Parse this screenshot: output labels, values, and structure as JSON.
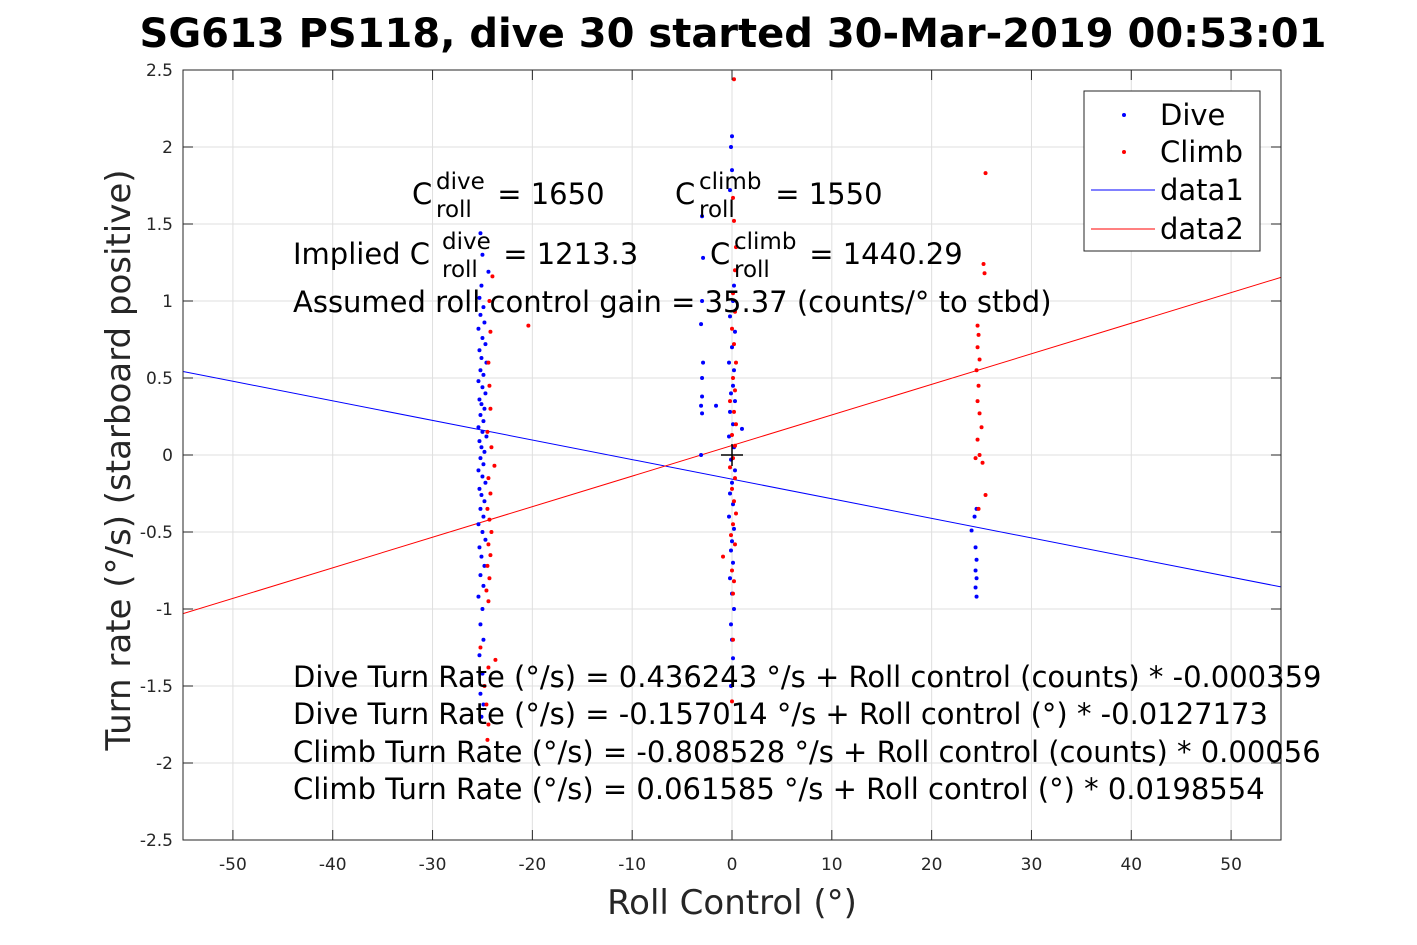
{
  "chart_data": {
    "type": "scatter",
    "title": "SG613 PS118, dive 30 started 30-Mar-2019 00:53:01",
    "xlabel": "Roll Control (°)",
    "ylabel": "Turn rate (°/s) (starboard positive)",
    "xlim": [
      -55,
      55
    ],
    "ylim": [
      -2.5,
      2.5
    ],
    "xticks": [
      -50,
      -40,
      -30,
      -20,
      -10,
      0,
      10,
      20,
      30,
      40,
      50
    ],
    "yticks": [
      -2.5,
      -2,
      -1.5,
      -1,
      -0.5,
      0,
      0.5,
      1,
      1.5,
      2,
      2.5
    ],
    "xtick_labels": [
      "-50",
      "-40",
      "-30",
      "-20",
      "-10",
      "0",
      "10",
      "20",
      "30",
      "40",
      "50"
    ],
    "ytick_labels": [
      "-2.5",
      "-2",
      "-1.5",
      "-1",
      "-0.5",
      "0",
      "0.5",
      "1",
      "1.5",
      "2",
      "2.5"
    ],
    "grid": true,
    "legend_position": "top-right",
    "colors": {
      "dive": "#0000ff",
      "climb": "#ff0000",
      "marker": "#000000"
    },
    "series": [
      {
        "name": "Dive",
        "style": "points",
        "points": [
          [
            -25.2,
            1.44
          ],
          [
            -25.0,
            1.3
          ],
          [
            -24.4,
            1.19
          ],
          [
            -25.1,
            1.1
          ],
          [
            -25.3,
            1.02
          ],
          [
            -24.9,
            0.96
          ],
          [
            -25.2,
            0.91
          ],
          [
            -24.8,
            0.86
          ],
          [
            -25.4,
            0.82
          ],
          [
            -25.0,
            0.76
          ],
          [
            -24.7,
            0.72
          ],
          [
            -25.3,
            0.68
          ],
          [
            -25.1,
            0.63
          ],
          [
            -24.6,
            0.6
          ],
          [
            -25.2,
            0.55
          ],
          [
            -24.9,
            0.52
          ],
          [
            -25.4,
            0.48
          ],
          [
            -25.0,
            0.44
          ],
          [
            -24.7,
            0.4
          ],
          [
            -25.3,
            0.36
          ],
          [
            -25.1,
            0.33
          ],
          [
            -24.8,
            0.3
          ],
          [
            -25.2,
            0.26
          ],
          [
            -24.9,
            0.22
          ],
          [
            -25.4,
            0.18
          ],
          [
            -25.0,
            0.15
          ],
          [
            -24.6,
            0.12
          ],
          [
            -25.3,
            0.09
          ],
          [
            -25.1,
            0.05
          ],
          [
            -24.8,
            0.02
          ],
          [
            -25.2,
            -0.02
          ],
          [
            -24.9,
            -0.06
          ],
          [
            -25.4,
            -0.1
          ],
          [
            -25.0,
            -0.14
          ],
          [
            -24.7,
            -0.18
          ],
          [
            -25.3,
            -0.22
          ],
          [
            -25.1,
            -0.26
          ],
          [
            -24.8,
            -0.3
          ],
          [
            -25.2,
            -0.35
          ],
          [
            -24.9,
            -0.4
          ],
          [
            -25.4,
            -0.45
          ],
          [
            -25.0,
            -0.5
          ],
          [
            -24.7,
            -0.55
          ],
          [
            -25.3,
            -0.6
          ],
          [
            -25.1,
            -0.66
          ],
          [
            -24.8,
            -0.72
          ],
          [
            -25.2,
            -0.78
          ],
          [
            -24.9,
            -0.85
          ],
          [
            -25.4,
            -0.92
          ],
          [
            -25.0,
            -1.0
          ],
          [
            -25.2,
            -1.1
          ],
          [
            -24.9,
            -1.2
          ],
          [
            -25.3,
            -1.3
          ],
          [
            -25.0,
            -1.42
          ],
          [
            -25.2,
            -1.55
          ],
          [
            -24.9,
            -1.62
          ],
          [
            -25.1,
            -1.7
          ],
          [
            0.0,
            2.07
          ],
          [
            -0.1,
            2.0
          ],
          [
            0.0,
            1.85
          ],
          [
            -0.2,
            1.72
          ],
          [
            -3.0,
            1.55
          ],
          [
            -2.9,
            1.28
          ],
          [
            -3.0,
            1.0
          ],
          [
            -3.1,
            0.85
          ],
          [
            -2.9,
            0.6
          ],
          [
            -3.0,
            0.5
          ],
          [
            -3.0,
            0.38
          ],
          [
            -3.1,
            0.32
          ],
          [
            -1.6,
            0.32
          ],
          [
            -3.0,
            0.27
          ],
          [
            -3.1,
            0.0
          ],
          [
            0.2,
            1.1
          ],
          [
            0.1,
            1.0
          ],
          [
            -0.2,
            0.9
          ],
          [
            0.3,
            0.8
          ],
          [
            0.0,
            0.7
          ],
          [
            -0.3,
            0.6
          ],
          [
            0.2,
            0.55
          ],
          [
            0.1,
            0.45
          ],
          [
            -0.1,
            0.4
          ],
          [
            0.3,
            0.35
          ],
          [
            1.0,
            0.17
          ],
          [
            -0.2,
            0.28
          ],
          [
            0.1,
            0.2
          ],
          [
            -0.3,
            0.12
          ],
          [
            0.2,
            0.05
          ],
          [
            -0.1,
            -0.03
          ],
          [
            0.3,
            -0.1
          ],
          [
            0.0,
            -0.18
          ],
          [
            -0.2,
            -0.25
          ],
          [
            0.1,
            -0.32
          ],
          [
            -0.3,
            -0.4
          ],
          [
            0.2,
            -0.48
          ],
          [
            0.0,
            -0.56
          ],
          [
            -0.1,
            -0.62
          ],
          [
            0.1,
            -0.7
          ],
          [
            -0.2,
            -0.8
          ],
          [
            0.0,
            -0.9
          ],
          [
            0.2,
            -1.0
          ],
          [
            -0.1,
            -1.1
          ],
          [
            0.0,
            -1.2
          ],
          [
            0.1,
            -1.32
          ],
          [
            -0.1,
            -1.5
          ],
          [
            24.0,
            -0.49
          ],
          [
            24.3,
            -0.4
          ],
          [
            24.5,
            -0.35
          ],
          [
            24.4,
            -0.6
          ],
          [
            24.5,
            -0.68
          ],
          [
            24.4,
            -0.75
          ],
          [
            24.5,
            -0.8
          ],
          [
            24.4,
            -0.86
          ],
          [
            24.5,
            -0.92
          ]
        ]
      },
      {
        "name": "Climb",
        "style": "points",
        "points": [
          [
            -24.0,
            1.16
          ],
          [
            -24.3,
            1.0
          ],
          [
            -24.2,
            0.8
          ],
          [
            -24.4,
            0.6
          ],
          [
            -24.3,
            0.45
          ],
          [
            -24.2,
            0.3
          ],
          [
            -24.5,
            0.15
          ],
          [
            -24.1,
            0.05
          ],
          [
            -23.8,
            -0.07
          ],
          [
            -24.4,
            -0.15
          ],
          [
            -24.2,
            -0.25
          ],
          [
            -24.5,
            -0.35
          ],
          [
            -24.3,
            -0.42
          ],
          [
            -24.1,
            -0.5
          ],
          [
            -24.4,
            -0.58
          ],
          [
            -24.2,
            -0.65
          ],
          [
            -24.5,
            -0.72
          ],
          [
            -24.3,
            -0.8
          ],
          [
            -24.6,
            -0.88
          ],
          [
            -24.4,
            -0.95
          ],
          [
            -25.2,
            -1.25
          ],
          [
            -24.4,
            -1.38
          ],
          [
            -23.7,
            -1.33
          ],
          [
            -24.8,
            -1.5
          ],
          [
            -24.6,
            -1.62
          ],
          [
            -24.4,
            -1.75
          ],
          [
            -24.5,
            -1.85
          ],
          [
            -20.4,
            0.84
          ],
          [
            0.2,
            2.44
          ],
          [
            0.1,
            1.67
          ],
          [
            0.2,
            1.52
          ],
          [
            0.4,
            1.35
          ],
          [
            0.3,
            1.2
          ],
          [
            0.1,
            1.05
          ],
          [
            0.3,
            0.93
          ],
          [
            0.0,
            0.82
          ],
          [
            0.2,
            0.72
          ],
          [
            0.4,
            0.6
          ],
          [
            0.1,
            0.5
          ],
          [
            0.3,
            0.42
          ],
          [
            -0.2,
            0.35
          ],
          [
            0.2,
            0.28
          ],
          [
            0.4,
            0.2
          ],
          [
            0.0,
            0.13
          ],
          [
            0.3,
            0.06
          ],
          [
            0.1,
            -0.02
          ],
          [
            -0.2,
            -0.08
          ],
          [
            0.3,
            -0.15
          ],
          [
            0.0,
            -0.22
          ],
          [
            0.2,
            -0.3
          ],
          [
            0.4,
            -0.38
          ],
          [
            0.1,
            -0.45
          ],
          [
            -0.1,
            -0.52
          ],
          [
            0.3,
            -0.58
          ],
          [
            -0.9,
            -0.66
          ],
          [
            0.0,
            -0.75
          ],
          [
            0.2,
            -0.82
          ],
          [
            0.1,
            -0.9
          ],
          [
            0.1,
            -1.2
          ],
          [
            0.0,
            -1.6
          ],
          [
            25.4,
            1.83
          ],
          [
            25.2,
            1.24
          ],
          [
            25.3,
            1.18
          ],
          [
            24.6,
            0.84
          ],
          [
            24.7,
            0.78
          ],
          [
            24.6,
            0.7
          ],
          [
            24.8,
            0.62
          ],
          [
            24.5,
            0.55
          ],
          [
            24.7,
            0.45
          ],
          [
            24.6,
            0.35
          ],
          [
            24.8,
            0.27
          ],
          [
            25.0,
            0.18
          ],
          [
            24.6,
            0.1
          ],
          [
            24.8,
            0.0
          ],
          [
            24.4,
            -0.02
          ],
          [
            25.1,
            -0.05
          ],
          [
            25.4,
            -0.26
          ],
          [
            24.7,
            -0.35
          ]
        ]
      },
      {
        "name": "data1",
        "style": "line",
        "x": [
          -55,
          55
        ],
        "y": [
          0.5425,
          -0.8565
        ]
      },
      {
        "name": "data2",
        "style": "line",
        "x": [
          -55,
          55
        ],
        "y": [
          -1.0304,
          1.1536
        ]
      }
    ],
    "marker": {
      "style": "plus",
      "x": 0,
      "y": 0
    }
  },
  "annotations": {
    "coef_dive": {
      "main": "C",
      "sup": "dive",
      "sub": "roll",
      "tail": " = 1650"
    },
    "coef_climb": {
      "main": "C",
      "sup": "climb",
      "sub": "roll",
      "tail": " = 1550"
    },
    "implied_prefix": "Implied C",
    "implied_dive": {
      "sup": "dive",
      "sub": "roll",
      "tail": " = 1213.3"
    },
    "implied_climb": {
      "main": "C",
      "sup": "climb",
      "sub": "roll",
      "tail": " = 1440.29"
    },
    "assumed_gain": "Assumed roll control gain = 35.37 (counts/° to stbd)",
    "equations": [
      "Dive Turn Rate (°/s) = 0.436243 °/s + Roll control (counts) * -0.000359",
      "Dive Turn Rate (°/s) = -0.157014 °/s + Roll control (°) * -0.0127173",
      "Climb Turn Rate (°/s) = -0.808528 °/s + Roll control (counts) * 0.00056",
      "Climb Turn Rate (°/s) = 0.061585 °/s + Roll control (°) * 0.0198554"
    ]
  }
}
